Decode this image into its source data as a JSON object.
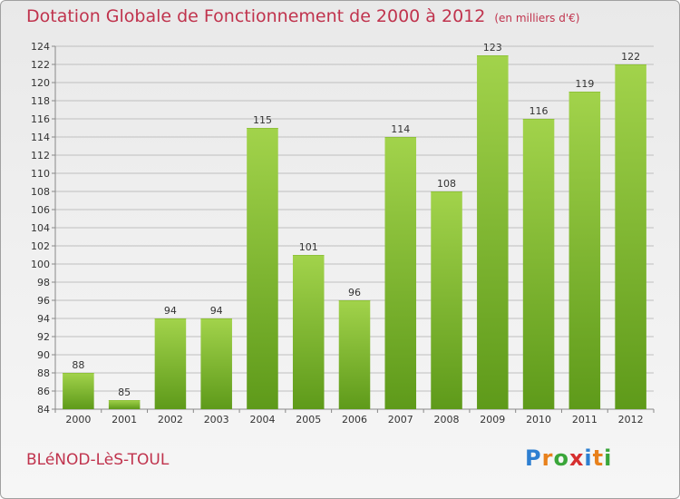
{
  "header": {
    "title": "Dotation Globale de Fonctionnement de 2000 à 2012",
    "unit": "(en milliers d'€)"
  },
  "footer": {
    "commune": "BLéNOD-LèS-TOUL",
    "logo_letters": [
      "P",
      "r",
      "o",
      "x",
      "i",
      "t",
      "i"
    ],
    "logo_colors": [
      "#2e7fd1",
      "#e8811c",
      "#3aa63a",
      "#d62f2f",
      "#2e7fd1",
      "#e8811c",
      "#3aa63a"
    ]
  },
  "colors": {
    "bar_light": "#a2d34b",
    "bar_dark": "#5e9a1a",
    "grid": "#bfbfbf",
    "title": "#c0334d"
  },
  "chart_data": {
    "type": "bar",
    "title": "Dotation Globale de Fonctionnement de 2000 à 2012",
    "subtitle": "(en milliers d'€)",
    "xlabel": "",
    "ylabel": "",
    "categories": [
      "2000",
      "2001",
      "2002",
      "2003",
      "2004",
      "2005",
      "2006",
      "2007",
      "2008",
      "2009",
      "2010",
      "2011",
      "2012"
    ],
    "values": [
      88,
      85,
      94,
      94,
      115,
      101,
      96,
      114,
      108,
      123,
      116,
      119,
      122
    ],
    "ylim": [
      84,
      124
    ],
    "yticks": [
      84,
      86,
      88,
      90,
      92,
      94,
      96,
      98,
      100,
      102,
      104,
      106,
      108,
      110,
      112,
      114,
      116,
      118,
      120,
      122,
      124
    ],
    "grid": true
  }
}
